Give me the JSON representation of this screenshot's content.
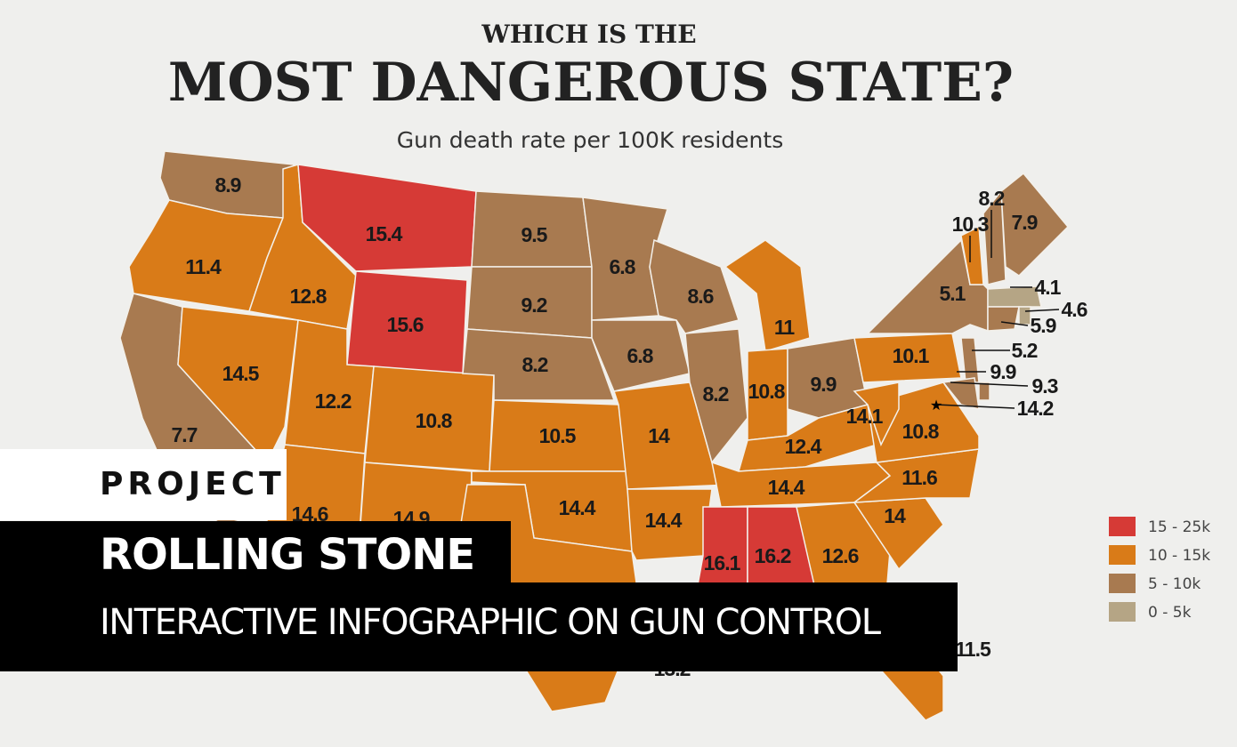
{
  "header": {
    "kicker": "WHICH IS THE",
    "title": "MOST DANGEROUS STATE?",
    "subtitle": "Gun death rate per 100K residents"
  },
  "legend": [
    {
      "label": "15 - 25k",
      "color": "#d63a36"
    },
    {
      "label": "10 - 15k",
      "color": "#d97b18"
    },
    {
      "label": "5 - 10k",
      "color": "#a87a50"
    },
    {
      "label": "0 - 5k",
      "color": "#b5a585"
    }
  ],
  "map": {
    "states": [
      {
        "value": 8.9,
        "legend": 2
      },
      {
        "value": 11.4,
        "legend": 1
      },
      {
        "value": 7.7,
        "legend": 2
      },
      {
        "value": 14.5,
        "legend": 1
      },
      {
        "value": 12.8,
        "legend": 1
      },
      {
        "value": 15.4,
        "legend": 0
      },
      {
        "value": 15.6,
        "legend": 0
      },
      {
        "value": 12.2,
        "legend": 1
      },
      {
        "value": 10.8,
        "legend": 1
      },
      {
        "value": 14.6,
        "legend": 1
      },
      {
        "value": 14.9,
        "legend": 1
      },
      {
        "value": 9.5,
        "legend": 2
      },
      {
        "value": 9.2,
        "legend": 2
      },
      {
        "value": 8.2,
        "legend": 2
      },
      {
        "value": 10.5,
        "legend": 1
      },
      {
        "value": 14.4,
        "legend": 1
      },
      {
        "value": 13.2,
        "legend": 1
      },
      {
        "value": 6.8,
        "legend": 2
      },
      {
        "value": 6.8,
        "legend": 2
      },
      {
        "value": 14,
        "legend": 1
      },
      {
        "value": 14.4,
        "legend": 1
      },
      {
        "value": 8.6,
        "legend": 2
      },
      {
        "value": 8.2,
        "legend": 2
      },
      {
        "value": 11,
        "legend": 1
      },
      {
        "value": 10.8,
        "legend": 1
      },
      {
        "value": 9.9,
        "legend": 2
      },
      {
        "value": 12.4,
        "legend": 1
      },
      {
        "value": 14.4,
        "legend": 1
      },
      {
        "value": 16.1,
        "legend": 0
      },
      {
        "value": 16.2,
        "legend": 0
      },
      {
        "value": 12.6,
        "legend": 1
      },
      {
        "value": 11.5,
        "legend": 1
      },
      {
        "value": 14,
        "legend": 1
      },
      {
        "value": 11.6,
        "legend": 1
      },
      {
        "value": 10.8,
        "legend": 1
      },
      {
        "value": 14.1,
        "legend": 1
      },
      {
        "value": 10.1,
        "legend": 1
      },
      {
        "value": 5.1,
        "legend": 2
      },
      {
        "value": 10.3,
        "legend": 1
      },
      {
        "value": 8.2,
        "legend": 2
      },
      {
        "value": 7.9,
        "legend": 2
      },
      {
        "value": 4.1,
        "legend": 3
      },
      {
        "value": 5.9,
        "legend": 2
      },
      {
        "value": 4.6,
        "legend": 3
      },
      {
        "value": 5.2,
        "legend": 2
      },
      {
        "value": 9.9,
        "legend": 2
      },
      {
        "value": 9.3,
        "legend": 2
      },
      {
        "value": 14.2,
        "legend": 1
      }
    ]
  },
  "overlay": {
    "tag": "PROJECT",
    "client": "ROLLING STONE",
    "description": "INTERACTIVE INFOGRAPHIC ON GUN CONTROL"
  }
}
